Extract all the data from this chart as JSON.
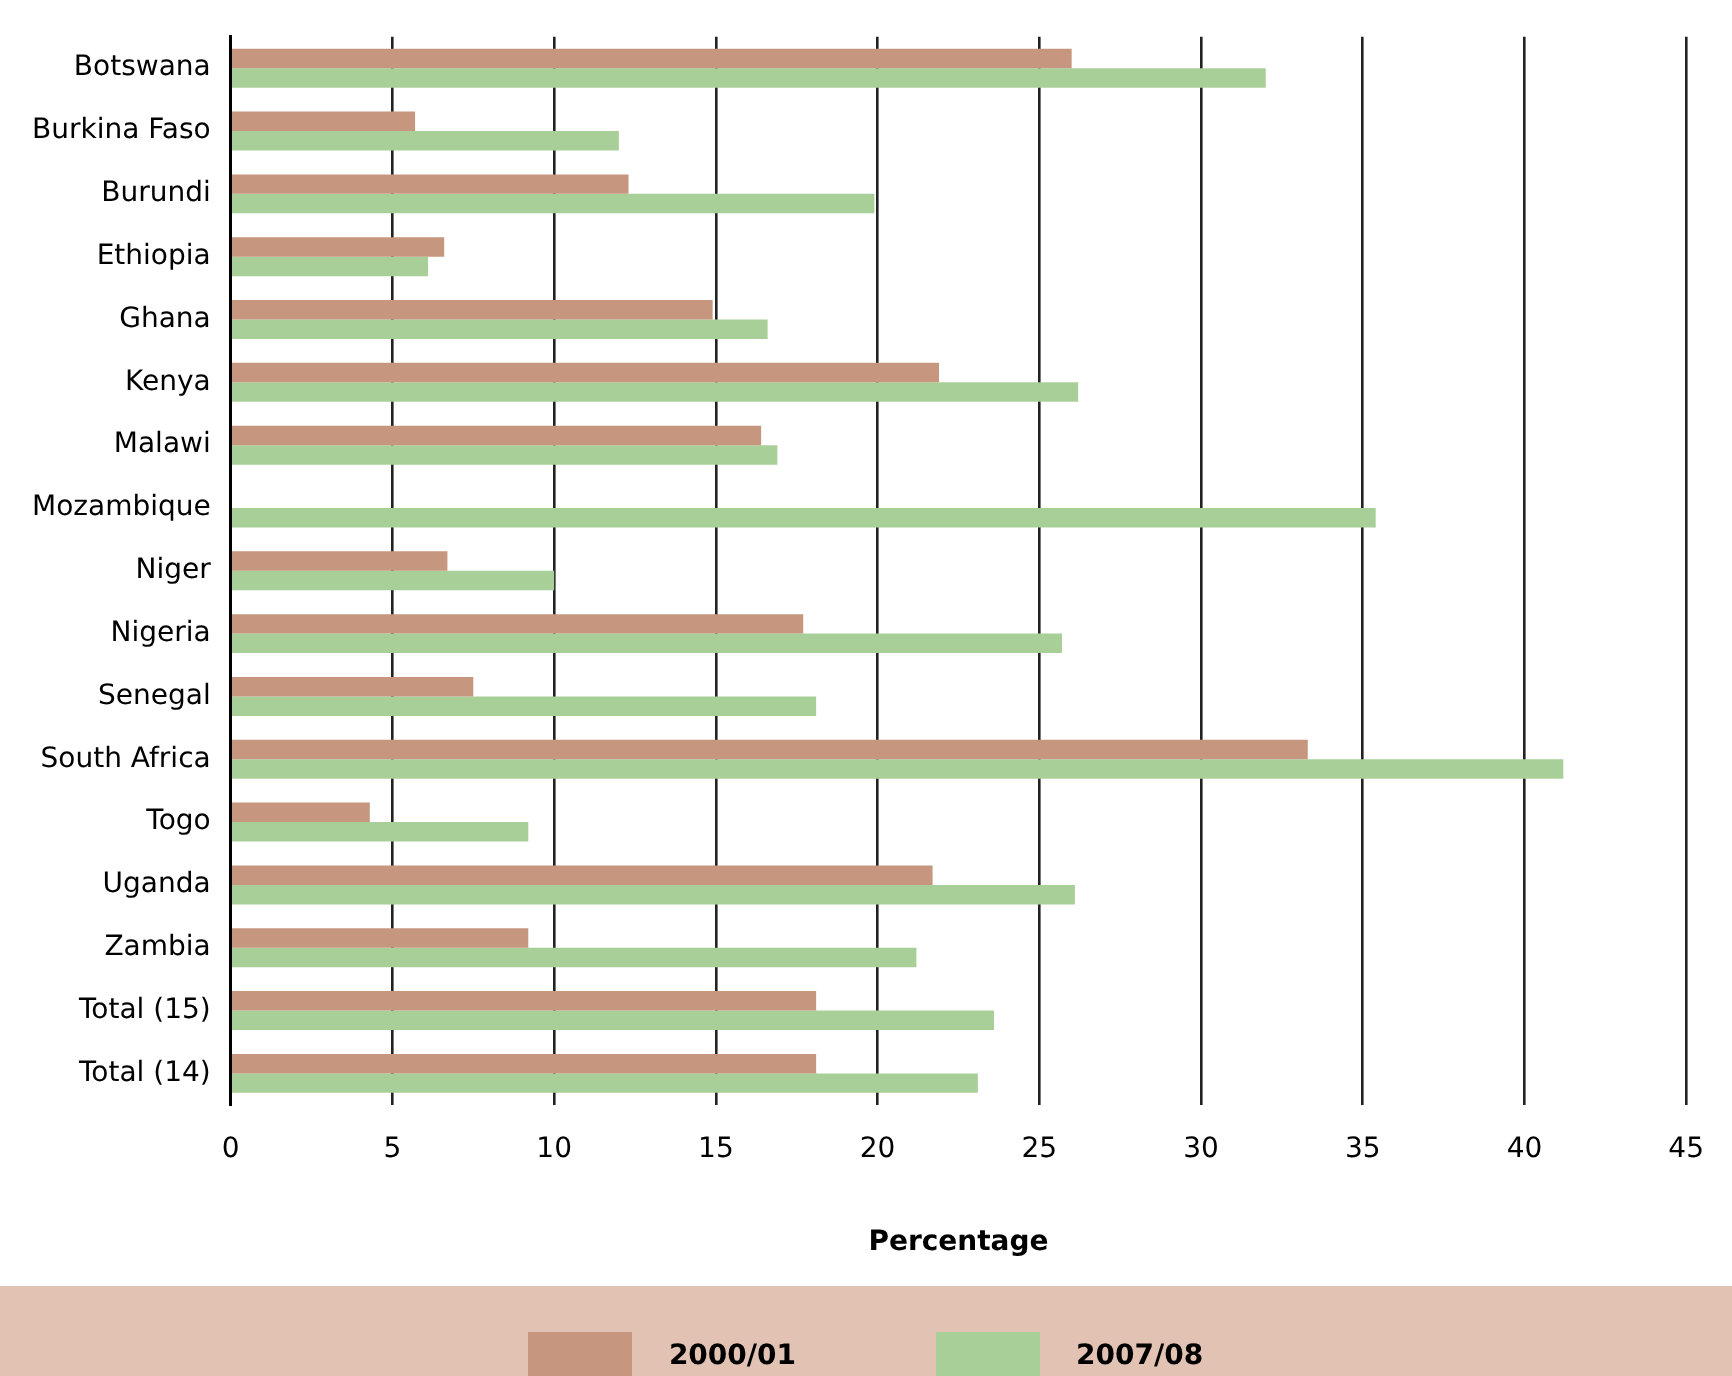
{
  "chart_data": {
    "type": "bar",
    "orientation": "horizontal",
    "categories": [
      "Botswana",
      "Burkina Faso",
      "Burundi",
      "Ethiopia",
      "Ghana",
      "Kenya",
      "Malawi",
      "Mozambique",
      "Niger",
      "Nigeria",
      "Senegal",
      "South Africa",
      "Togo",
      "Uganda",
      "Zambia",
      "Total (15)",
      "Total (14)"
    ],
    "series": [
      {
        "name": "2000/01",
        "color": "#c6967e",
        "values": [
          26.0,
          5.7,
          12.3,
          6.6,
          14.9,
          21.9,
          16.4,
          null,
          6.7,
          17.7,
          7.5,
          33.3,
          4.3,
          21.7,
          9.2,
          18.1,
          18.1
        ]
      },
      {
        "name": "2007/08",
        "color": "#a8cf98",
        "values": [
          32.0,
          12.0,
          19.9,
          6.1,
          16.6,
          26.2,
          16.9,
          35.4,
          10.0,
          25.7,
          18.1,
          41.2,
          9.2,
          26.1,
          21.2,
          23.6,
          23.1
        ]
      }
    ],
    "xlabel": "Percentage",
    "xlim": [
      0,
      45
    ],
    "xticks": [
      0,
      5,
      10,
      15,
      20,
      25,
      30,
      35,
      40,
      45
    ],
    "grid": "x",
    "legend": "bottom"
  }
}
